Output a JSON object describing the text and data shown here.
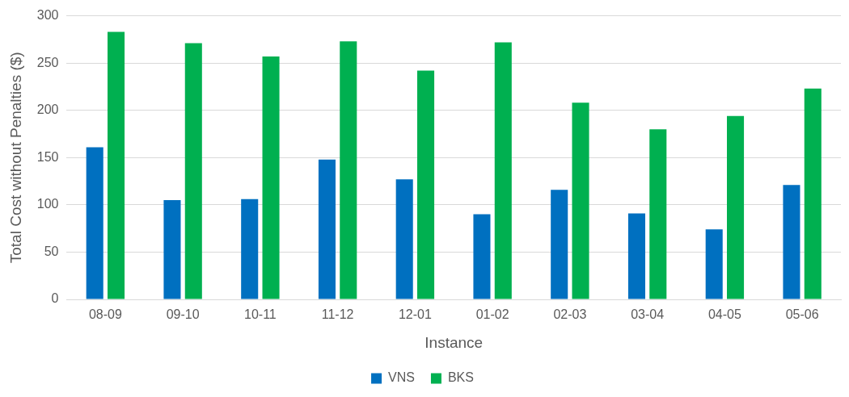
{
  "chart_data": {
    "type": "bar",
    "xlabel": "Instance",
    "ylabel": "Total Cost without Penalties ($)",
    "categories": [
      "08-09",
      "09-10",
      "10-11",
      "11-12",
      "12-01",
      "01-02",
      "02-03",
      "03-04",
      "04-05",
      "05-06"
    ],
    "series": [
      {
        "name": "VNS",
        "color": "#0070c0",
        "values": [
          161,
          105,
          106,
          148,
          127,
          90,
          116,
          91,
          74,
          121
        ]
      },
      {
        "name": "BKS",
        "color": "#00b050",
        "values": [
          283,
          271,
          257,
          273,
          242,
          272,
          208,
          180,
          194,
          223
        ]
      }
    ],
    "ylim": [
      0,
      300
    ],
    "yticks": [
      0,
      50,
      100,
      150,
      200,
      250,
      300
    ],
    "grid": "y",
    "legend": "bottom"
  }
}
